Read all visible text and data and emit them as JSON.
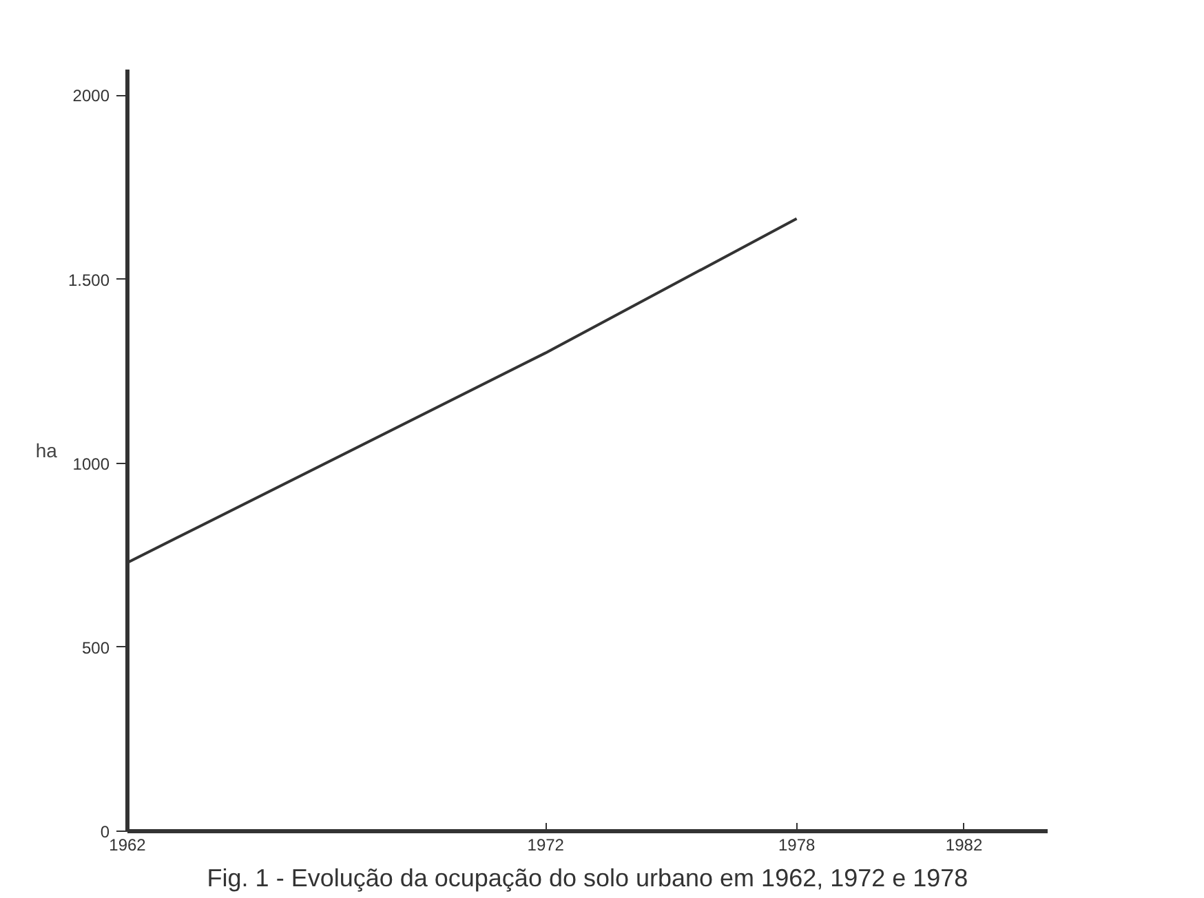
{
  "chart_data": {
    "type": "line",
    "title": "Fig. 1 - Evolução da ocupação do solo urbano em 1962, 1972 e 1978",
    "ylabel": "ha",
    "x": [
      1962,
      1972,
      1978
    ],
    "series": [
      {
        "color": "#333333",
        "values": [
          730,
          1300,
          1665
        ]
      }
    ],
    "xlim": [
      1962,
      1984
    ],
    "xticks": [
      1962,
      1972,
      1978,
      1982
    ],
    "ylim": [
      0,
      2070
    ],
    "yticks": [
      0,
      500,
      1000,
      {
        "value": 1500,
        "label": "1.500"
      },
      2000
    ],
    "grid": false,
    "marker": "none",
    "line_style": "solid"
  }
}
